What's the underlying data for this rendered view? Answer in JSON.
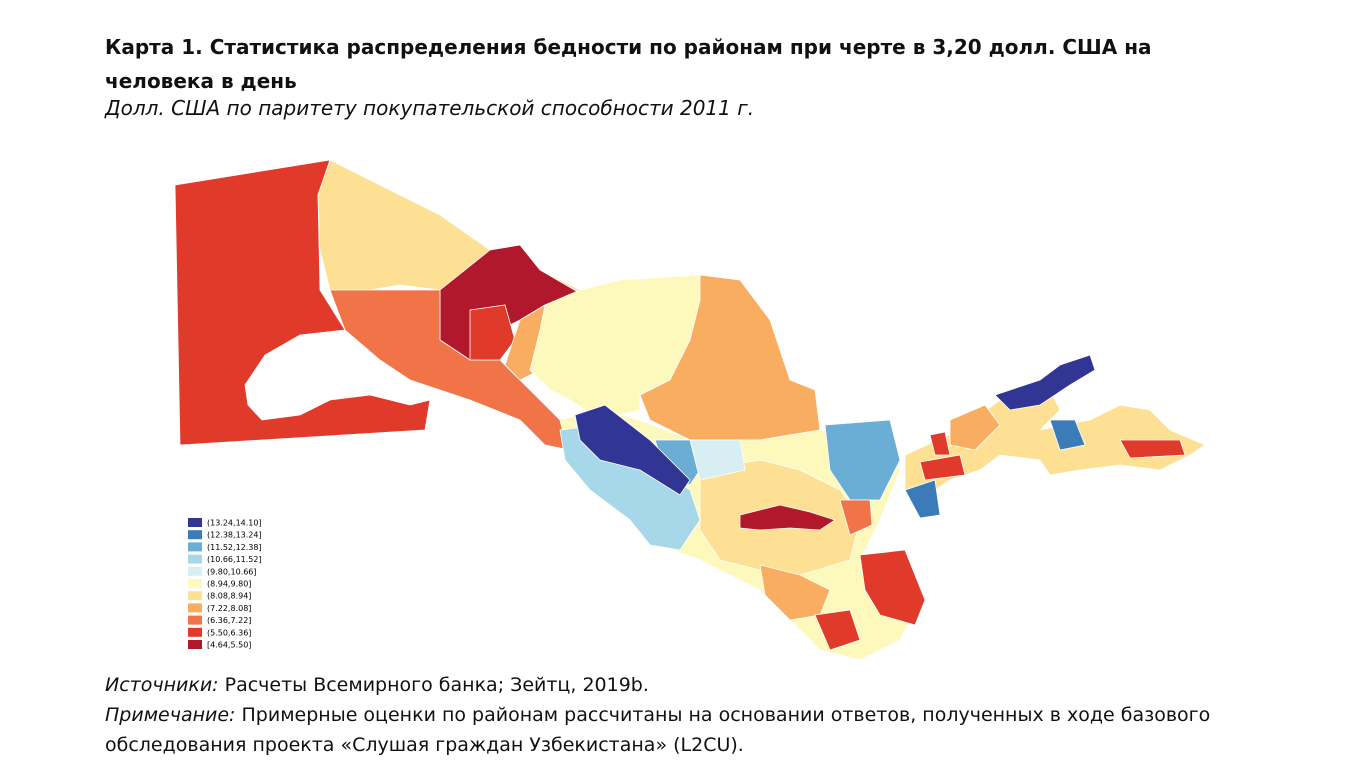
{
  "header": {
    "title": "Карта 1. Статистика распределения бедности по районам при черте в 3,20 долл. США на человека в день",
    "subtitle": "Долл. США по паритету покупательской способности 2011 г."
  },
  "legend": {
    "items": [
      {
        "label": "(13.24,14.10]",
        "color": "#313695"
      },
      {
        "label": "(12.38,13.24]",
        "color": "#3a7bb8"
      },
      {
        "label": "(11.52,12.38]",
        "color": "#6aaed6"
      },
      {
        "label": "(10.66,11.52]",
        "color": "#a6d8ea"
      },
      {
        "label": "(9.80,10.66]",
        "color": "#d7eef3"
      },
      {
        "label": "(8.94,9.80]",
        "color": "#fdf8bc"
      },
      {
        "label": "(8.08,8.94]",
        "color": "#fde093"
      },
      {
        "label": "(7.22,8.08]",
        "color": "#f9ad60"
      },
      {
        "label": "(6.36,7.22]",
        "color": "#f07448"
      },
      {
        "label": "(5.50,6.36]",
        "color": "#e03a2a"
      },
      {
        "label": "[4.64,5.50]",
        "color": "#b2182b"
      }
    ]
  },
  "footer": {
    "sources_label": "Источники:",
    "sources": "Расчеты Всемирного банка; Зейтц, 2019b.",
    "note_label": "Примечание:",
    "note": "Примерные оценки по районам рассчитаны на основании ответов, полученных в ходе базового обследования проекта «Слушая граждан Узбекистана» (L2CU)."
  }
}
